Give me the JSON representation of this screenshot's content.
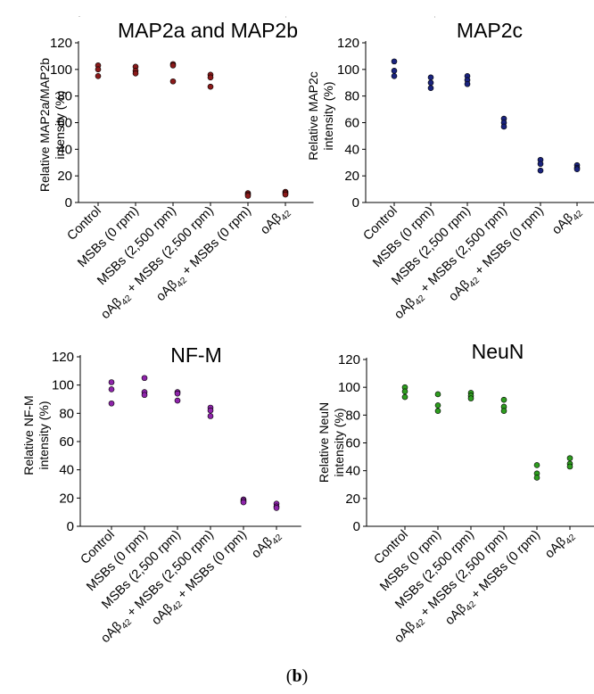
{
  "figure_label": {
    "open": "(",
    "letter": "b",
    "close": ")"
  },
  "chart_data": [
    {
      "type": "scatter",
      "title": "MAP2a and MAP2b",
      "ylabel_lines": [
        "Relative  MAP2a/MAP2b",
        "intensity (%)"
      ],
      "ylim": [
        0,
        120
      ],
      "yticks": [
        0,
        20,
        40,
        60,
        80,
        100,
        120
      ],
      "grid": false,
      "color": "#8b1a1a",
      "categories": [
        [
          {
            "t": "Control"
          }
        ],
        [
          {
            "t": "MSBs (0 rpm)"
          }
        ],
        [
          {
            "t": "MSBs (2,500 rpm)"
          }
        ],
        [
          {
            "t": "oA"
          },
          {
            "t": "β",
            "g": true
          },
          {
            "t": "42",
            "sub": true
          },
          {
            "t": " + MSBs (2,500 rpm)"
          }
        ],
        [
          {
            "t": "oA"
          },
          {
            "t": "β",
            "g": true
          },
          {
            "t": "42",
            "sub": true
          },
          {
            "t": " + MSBs (0 rpm)"
          }
        ],
        [
          {
            "t": "oA"
          },
          {
            "t": "β",
            "g": true
          },
          {
            "t": "42",
            "sub": true
          }
        ]
      ],
      "points": [
        [
          103,
          100,
          95
        ],
        [
          102,
          99,
          97
        ],
        [
          104,
          103,
          91
        ],
        [
          96,
          94,
          87
        ],
        [
          7,
          6,
          5
        ],
        [
          8,
          7,
          6
        ]
      ]
    },
    {
      "type": "scatter",
      "title": "MAP2c",
      "ylabel_lines": [
        "Relative  MAP2c",
        "intensity (%)"
      ],
      "ylim": [
        0,
        120
      ],
      "yticks": [
        0,
        20,
        40,
        60,
        80,
        100,
        120
      ],
      "grid": false,
      "color": "#1a237e",
      "categories": [
        [
          {
            "t": "Control"
          }
        ],
        [
          {
            "t": "MSBs (0 rpm)"
          }
        ],
        [
          {
            "t": "MSBs (2,500 rpm)"
          }
        ],
        [
          {
            "t": "oA"
          },
          {
            "t": "β",
            "g": true
          },
          {
            "t": "42",
            "sub": true
          },
          {
            "t": " + MSBs (2,500 rpm)"
          }
        ],
        [
          {
            "t": "oA"
          },
          {
            "t": "β",
            "g": true
          },
          {
            "t": "42",
            "sub": true
          },
          {
            "t": " + MSBs (0 rpm)"
          }
        ],
        [
          {
            "t": "oA"
          },
          {
            "t": "β",
            "g": true
          },
          {
            "t": "42",
            "sub": true
          }
        ]
      ],
      "points": [
        [
          106,
          99,
          95
        ],
        [
          94,
          90,
          86
        ],
        [
          95,
          92,
          89
        ],
        [
          63,
          60,
          57
        ],
        [
          32,
          29,
          24
        ],
        [
          28,
          26,
          25
        ]
      ]
    },
    {
      "type": "scatter",
      "title": "NF-M",
      "ylabel_lines": [
        "Relative  NF-M",
        "intensity (%)"
      ],
      "ylim": [
        0,
        120
      ],
      "yticks": [
        0,
        20,
        40,
        60,
        80,
        100,
        120
      ],
      "grid": false,
      "color": "#8e24aa",
      "categories": [
        [
          {
            "t": "Control"
          }
        ],
        [
          {
            "t": "MSBs (0 rpm)"
          }
        ],
        [
          {
            "t": "MSBs (2,500 rpm)"
          }
        ],
        [
          {
            "t": "oA"
          },
          {
            "t": "β",
            "g": true
          },
          {
            "t": "42",
            "sub": true
          },
          {
            "t": " + MSBs (2,500 rpm)"
          }
        ],
        [
          {
            "t": "oA"
          },
          {
            "t": "β",
            "g": true
          },
          {
            "t": "42",
            "sub": true
          },
          {
            "t": " + MSBs (0 rpm)"
          }
        ],
        [
          {
            "t": "oA"
          },
          {
            "t": "β",
            "g": true
          },
          {
            "t": "42",
            "sub": true
          }
        ]
      ],
      "points": [
        [
          102,
          97,
          87
        ],
        [
          105,
          95,
          93
        ],
        [
          95,
          94,
          89
        ],
        [
          84,
          82,
          78
        ],
        [
          19,
          18,
          17
        ],
        [
          16,
          14,
          13
        ]
      ]
    },
    {
      "type": "scatter",
      "title": "NeuN",
      "ylabel_lines": [
        "Relative  NeuN",
        "intensity (%)"
      ],
      "ylim": [
        0,
        120
      ],
      "yticks": [
        0,
        20,
        40,
        60,
        80,
        100,
        120
      ],
      "grid": false,
      "color": "#2e9d1f",
      "categories": [
        [
          {
            "t": "Control"
          }
        ],
        [
          {
            "t": "MSBs (0 rpm)"
          }
        ],
        [
          {
            "t": "MSBs (2,500 rpm)"
          }
        ],
        [
          {
            "t": "oA"
          },
          {
            "t": "β",
            "g": true
          },
          {
            "t": "42",
            "sub": true
          },
          {
            "t": " + MSBs (2,500 rpm)"
          }
        ],
        [
          {
            "t": "oA"
          },
          {
            "t": "β",
            "g": true
          },
          {
            "t": "42",
            "sub": true
          },
          {
            "t": " + MSBs (0 rpm)"
          }
        ],
        [
          {
            "t": "oA"
          },
          {
            "t": "β",
            "g": true
          },
          {
            "t": "42",
            "sub": true
          }
        ]
      ],
      "points": [
        [
          100,
          97,
          93
        ],
        [
          95,
          87,
          83
        ],
        [
          96,
          94,
          92
        ],
        [
          91,
          86,
          83
        ],
        [
          44,
          38,
          35
        ],
        [
          49,
          45,
          43
        ]
      ]
    }
  ]
}
